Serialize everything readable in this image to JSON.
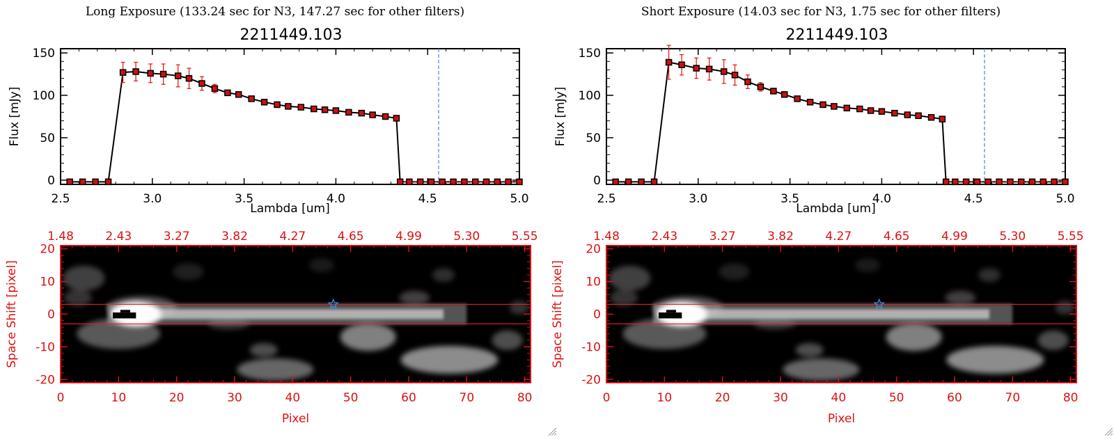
{
  "chart_data": [
    {
      "type": "line",
      "panel": "left",
      "title": "2211449.103",
      "subtitle": "Long Exposure (133.24 sec for N3, 147.27 sec for other filters)",
      "xlabel": "Lambda [um]",
      "ylabel": "Flux [mJy]",
      "xlim": [
        2.5,
        5.0
      ],
      "ylim": [
        -5,
        155
      ],
      "xticks": [
        2.5,
        3.0,
        3.5,
        4.0,
        4.5,
        5.0
      ],
      "xtick_labels": [
        "2.5",
        "3.0",
        "3.5",
        "4.0",
        "4.5",
        "5.0"
      ],
      "yticks": [
        0,
        50,
        100,
        150
      ],
      "ytick_labels": [
        "0",
        "50",
        "100",
        "150"
      ],
      "vline_x": 4.56,
      "series": [
        {
          "name": "flux",
          "x": [
            2.55,
            2.62,
            2.69,
            2.76,
            2.84,
            2.91,
            2.99,
            3.06,
            3.14,
            3.2,
            3.27,
            3.34,
            3.41,
            3.47,
            3.54,
            3.61,
            3.68,
            3.74,
            3.81,
            3.88,
            3.94,
            4.0,
            4.07,
            4.14,
            4.2,
            4.27,
            4.33,
            4.35,
            4.4,
            4.46,
            4.52,
            4.58,
            4.64,
            4.7,
            4.76,
            4.82,
            4.88,
            4.94,
            5.0
          ],
          "y": [
            -2,
            -2,
            -2,
            -2,
            127,
            128,
            126,
            125,
            123,
            120,
            114,
            108,
            103,
            101,
            96,
            92,
            89,
            87,
            86,
            84,
            83,
            82,
            80,
            79,
            77,
            75,
            73,
            -2,
            -2,
            -2,
            -2,
            -2,
            -2,
            -2,
            -2,
            -2,
            -2,
            -2,
            -2
          ],
          "err": [
            0,
            0,
            0,
            0,
            12,
            11,
            11,
            12,
            13,
            12,
            8,
            5,
            3,
            2,
            2,
            2,
            1,
            1,
            1,
            1,
            1,
            1,
            1,
            1,
            1,
            1,
            1,
            0,
            0,
            0,
            0,
            0,
            0,
            0,
            0,
            0,
            0,
            0,
            0
          ]
        }
      ],
      "image_panel": {
        "xlabel": "Pixel",
        "ylabel": "Space Shift [pixel]",
        "xlim": [
          0,
          81
        ],
        "ylim": [
          -21,
          21
        ],
        "xticks": [
          0,
          10,
          20,
          30,
          40,
          50,
          60,
          70,
          80
        ],
        "xtick_labels": [
          "0",
          "10",
          "20",
          "30",
          "40",
          "50",
          "60",
          "70",
          "80"
        ],
        "yticks": [
          -20,
          -10,
          0,
          10,
          20
        ],
        "ytick_labels": [
          "-20",
          "-10",
          "0",
          "10",
          "20"
        ],
        "top_tick_labels": [
          "1.48",
          "2.43",
          "3.27",
          "3.82",
          "4.27",
          "4.65",
          "4.99",
          "5.30",
          "5.55"
        ],
        "band_lines_y": [
          3,
          -3
        ],
        "star_marker": [
          47,
          3
        ]
      }
    },
    {
      "type": "line",
      "panel": "right",
      "title": "2211449.103",
      "subtitle": "Short Exposure (14.03 sec for N3, 1.75 sec for other filters)",
      "xlabel": "Lambda [um]",
      "ylabel": "Flux [mJy]",
      "xlim": [
        2.5,
        5.0
      ],
      "ylim": [
        -5,
        155
      ],
      "xticks": [
        2.5,
        3.0,
        3.5,
        4.0,
        4.5,
        5.0
      ],
      "xtick_labels": [
        "2.5",
        "3.0",
        "3.5",
        "4.0",
        "4.5",
        "5.0"
      ],
      "yticks": [
        0,
        50,
        100,
        150
      ],
      "ytick_labels": [
        "0",
        "50",
        "100",
        "150"
      ],
      "vline_x": 4.56,
      "series": [
        {
          "name": "flux",
          "x": [
            2.55,
            2.62,
            2.69,
            2.76,
            2.84,
            2.91,
            2.99,
            3.06,
            3.14,
            3.2,
            3.27,
            3.34,
            3.41,
            3.47,
            3.54,
            3.61,
            3.68,
            3.74,
            3.81,
            3.88,
            3.94,
            4.0,
            4.07,
            4.14,
            4.2,
            4.27,
            4.33,
            4.35,
            4.4,
            4.46,
            4.52,
            4.58,
            4.64,
            4.7,
            4.76,
            4.82,
            4.88,
            4.94,
            5.0
          ],
          "y": [
            -2,
            -2,
            -2,
            -2,
            139,
            136,
            132,
            131,
            128,
            124,
            116,
            110,
            105,
            101,
            96,
            92,
            89,
            87,
            85,
            84,
            82,
            81,
            79,
            77,
            76,
            74,
            72,
            -2,
            -2,
            -2,
            -2,
            -2,
            -2,
            -2,
            -2,
            -2,
            -2,
            -2,
            -2
          ],
          "err": [
            0,
            0,
            0,
            0,
            20,
            12,
            12,
            13,
            14,
            12,
            8,
            5,
            3,
            2,
            2,
            2,
            1,
            1,
            1,
            1,
            1,
            1,
            1,
            1,
            1,
            1,
            1,
            0,
            0,
            0,
            0,
            0,
            0,
            0,
            0,
            0,
            0,
            0,
            0
          ]
        }
      ],
      "image_panel": {
        "xlabel": "Pixel",
        "ylabel": "Space Shift [pixel]",
        "xlim": [
          0,
          81
        ],
        "ylim": [
          -21,
          21
        ],
        "xticks": [
          0,
          10,
          20,
          30,
          40,
          50,
          60,
          70,
          80
        ],
        "xtick_labels": [
          "0",
          "10",
          "20",
          "30",
          "40",
          "50",
          "60",
          "70",
          "80"
        ],
        "yticks": [
          -20,
          -10,
          0,
          10,
          20
        ],
        "ytick_labels": [
          "-20",
          "-10",
          "0",
          "10",
          "20"
        ],
        "top_tick_labels": [
          "1.48",
          "2.43",
          "3.27",
          "3.82",
          "4.27",
          "4.65",
          "4.99",
          "5.30",
          "5.55"
        ],
        "band_lines_y": [
          3,
          -3
        ],
        "star_marker": [
          47,
          3
        ]
      }
    }
  ],
  "colors": {
    "axis": "#000000",
    "line": "#000000",
    "marker": "#cc1111",
    "error": "#dd1111",
    "vline": "#3a8de0",
    "image_axis": "#dd1111",
    "band": "#dd2222",
    "star": "#3a8de0"
  }
}
